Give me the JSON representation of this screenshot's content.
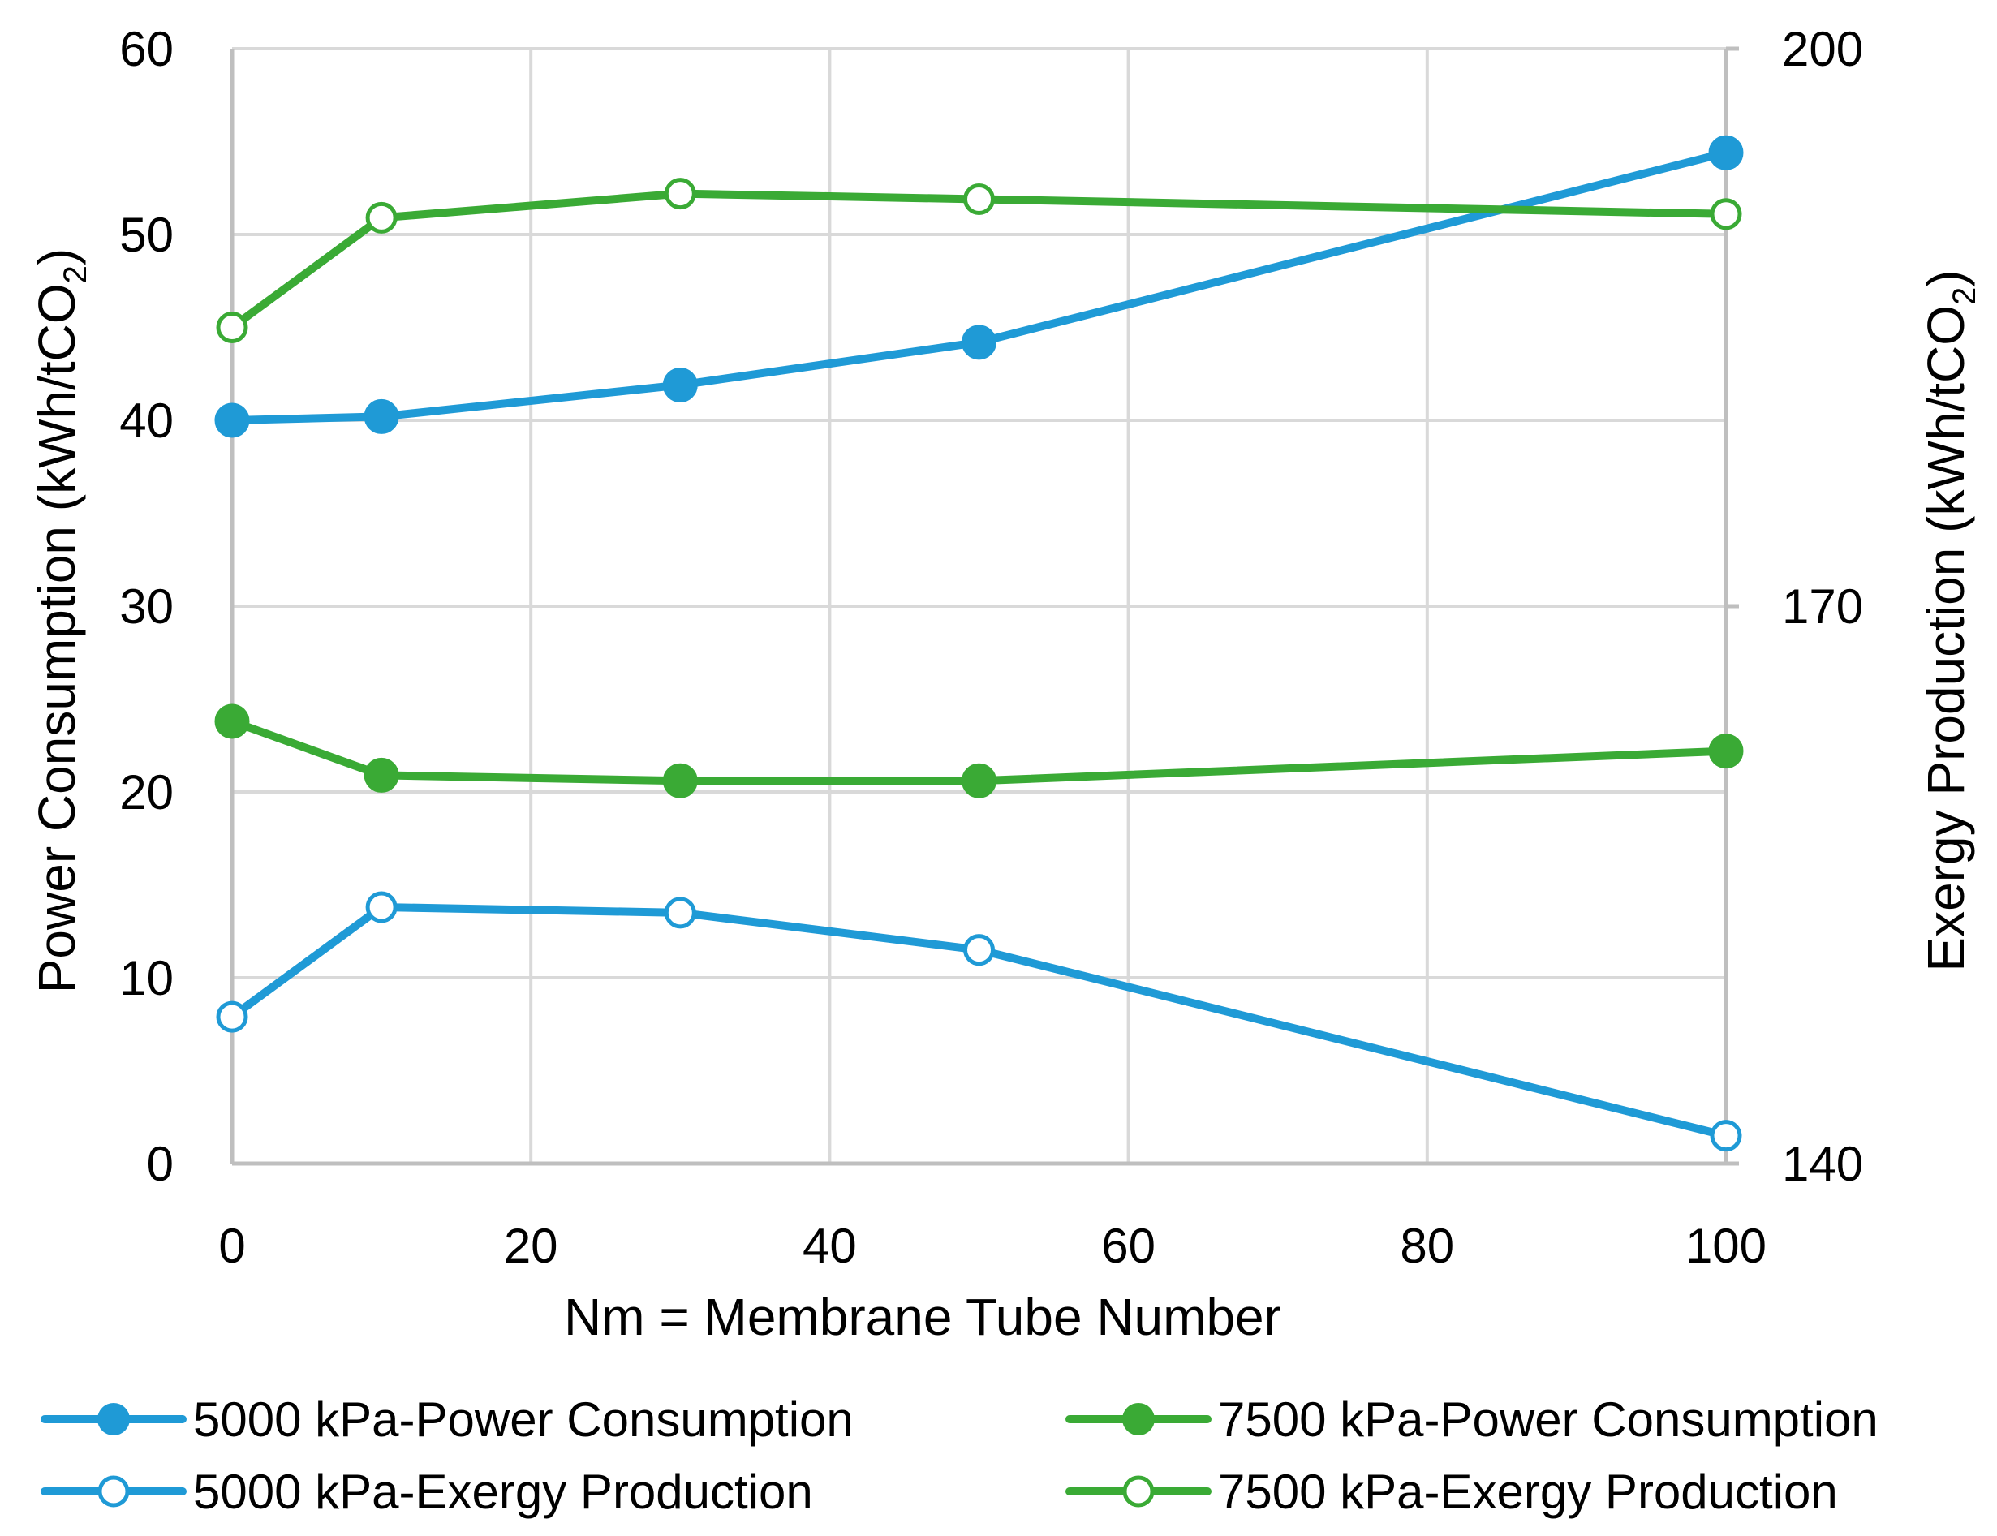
{
  "chart_data": {
    "type": "line",
    "xlabel": "Nm = Membrane Tube Number",
    "ylabel_left": {
      "main": "Power Consumption (kWh/tCO",
      "sub": "2",
      "close": ")"
    },
    "ylabel_right": {
      "main": "Exergy Production (kWh/tCO",
      "sub": "2",
      "close": ")"
    },
    "xlim": [
      0,
      100
    ],
    "xticks": [
      0,
      20,
      40,
      60,
      80,
      100
    ],
    "ylim_left": [
      0,
      60
    ],
    "yticks_left": [
      0,
      10,
      20,
      30,
      40,
      50,
      60
    ],
    "ylim_right": [
      140,
      200
    ],
    "yticks_right": [
      140,
      170,
      200
    ],
    "grid": true,
    "legend_position": "bottom",
    "series": [
      {
        "name": "5000 kPa-Power Consumption",
        "axis": "left",
        "color": "#1f9ad6",
        "marker": "filled",
        "x": [
          0,
          10,
          30,
          50,
          100
        ],
        "y": [
          40.0,
          40.2,
          41.9,
          44.2,
          54.4
        ]
      },
      {
        "name": "7500 kPa-Power Consumption",
        "axis": "left",
        "color": "#3aaa35",
        "marker": "filled",
        "x": [
          0,
          10,
          30,
          50,
          100
        ],
        "y": [
          23.8,
          20.9,
          20.6,
          20.6,
          22.2
        ]
      },
      {
        "name": "5000 kPa-Exergy Production",
        "axis": "right",
        "color": "#1f9ad6",
        "marker": "hollow",
        "x": [
          0,
          10,
          30,
          50,
          100
        ],
        "y": [
          147.9,
          153.8,
          153.5,
          151.5,
          141.5
        ]
      },
      {
        "name": "7500 kPa-Exergy Production",
        "axis": "right",
        "color": "#3aaa35",
        "marker": "hollow",
        "x": [
          0,
          10,
          30,
          50,
          100
        ],
        "y": [
          185.0,
          190.9,
          192.2,
          191.9,
          191.1
        ]
      }
    ]
  }
}
